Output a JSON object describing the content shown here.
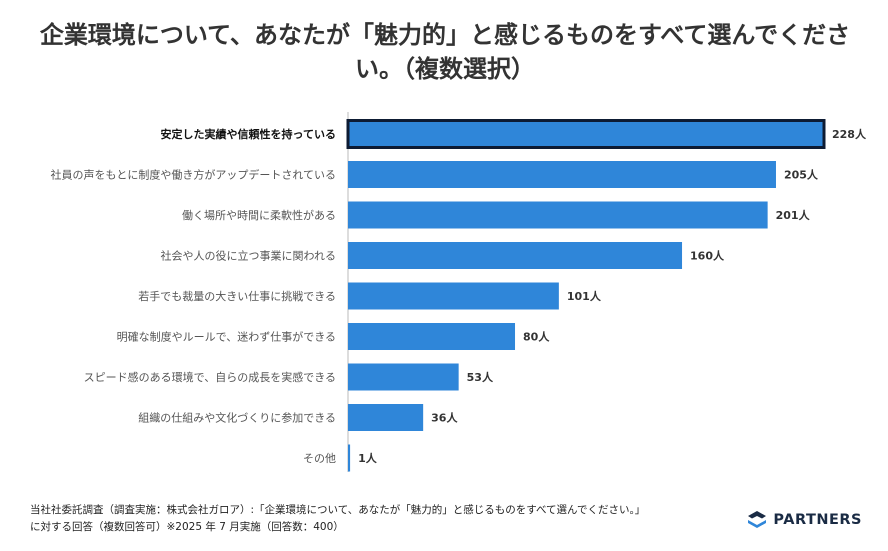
{
  "chart_data": {
    "type": "bar",
    "orientation": "horizontal",
    "title": "企業環境について、あなたが「魅力的」と感じるものをすべて選んでください。（複数選択）",
    "categories": [
      "安定した実績や信頼性を持っている",
      "社員の声をもとに制度や働き方がアップデートされている",
      "働く場所や時間に柔軟性がある",
      "社会や人の役に立つ事業に関われる",
      "若手でも裁量の大きい仕事に挑戦できる",
      "明確な制度やルールで、迷わず仕事ができる",
      "スピード感のある環境で、自らの成長を実感できる",
      "組織の仕組みや文化づくりに参加できる",
      "その他"
    ],
    "values": [
      228,
      205,
      201,
      160,
      101,
      80,
      53,
      36,
      1
    ],
    "value_labels": [
      "228人",
      "205人",
      "201人",
      "160人",
      "101人",
      "80人",
      "53人",
      "36人",
      "1人"
    ],
    "highlighted_index": 0,
    "xlim": [
      0,
      228
    ],
    "grid": false,
    "colors": {
      "bar": "#2f86d9",
      "highlight_border": "#0d1b33",
      "axis": "#bbbbbb",
      "label": "#555555",
      "label_highlight": "#111111"
    }
  },
  "footnote": {
    "line1": "当社社委託調査（調査実施：株式会社ガロア）:「企業環境について、あなたが「魅力的」と感じるものをすべて選んでください。」",
    "line2": "に対する回答（複数回答可）※2025 年 7 月実施（回答数：400）"
  },
  "logo": {
    "text": "PARTNERS",
    "icon": "partners-logo-icon"
  }
}
